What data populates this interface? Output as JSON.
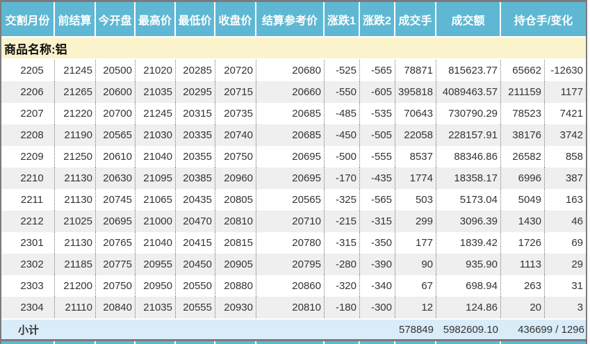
{
  "colors": {
    "header_bg": "#5eb8d3",
    "header_text": "#ffffff",
    "product_row_bg": "#fbf3cb",
    "alt_row_bg": "#efefef",
    "subtotal_bg": "#d9ecf8",
    "border": "#7b7b7b",
    "dotted": "#777777",
    "text": "#333333"
  },
  "table": {
    "columns": [
      "交割月份",
      "前结算",
      "今开盘",
      "最高价",
      "最低价",
      "收盘价",
      "结算参考价",
      "涨跌1",
      "涨跌2",
      "成交手",
      "成交额",
      "持仓手/变化"
    ],
    "product_label": "商品名称:铝",
    "rows": [
      [
        "2205",
        "21245",
        "20500",
        "21020",
        "20285",
        "20720",
        "20680",
        "-525",
        "-565",
        "78871",
        "815623.77",
        "65662",
        "-12630"
      ],
      [
        "2206",
        "21265",
        "20600",
        "21035",
        "20295",
        "20715",
        "20660",
        "-550",
        "-605",
        "395818",
        "4089463.57",
        "211159",
        "1177"
      ],
      [
        "2207",
        "21220",
        "20700",
        "21245",
        "20315",
        "20735",
        "20685",
        "-485",
        "-535",
        "70643",
        "730790.29",
        "78523",
        "7421"
      ],
      [
        "2208",
        "21190",
        "20565",
        "21030",
        "20335",
        "20740",
        "20685",
        "-450",
        "-505",
        "22058",
        "228157.91",
        "38176",
        "3742"
      ],
      [
        "2209",
        "21250",
        "20610",
        "21040",
        "20355",
        "20750",
        "20695",
        "-500",
        "-555",
        "8537",
        "88346.86",
        "26582",
        "858"
      ],
      [
        "2210",
        "21130",
        "20630",
        "21095",
        "20385",
        "20960",
        "20695",
        "-170",
        "-435",
        "1774",
        "18358.17",
        "6996",
        "387"
      ],
      [
        "2211",
        "21130",
        "20745",
        "21065",
        "20435",
        "20805",
        "20565",
        "-325",
        "-565",
        "503",
        "5173.04",
        "5049",
        "163"
      ],
      [
        "2212",
        "21025",
        "20695",
        "21000",
        "20470",
        "20810",
        "20710",
        "-215",
        "-315",
        "299",
        "3096.39",
        "1430",
        "46"
      ],
      [
        "2301",
        "21130",
        "20765",
        "21040",
        "20415",
        "20815",
        "20780",
        "-315",
        "-350",
        "177",
        "1839.42",
        "1726",
        "69"
      ],
      [
        "2302",
        "21185",
        "20775",
        "20955",
        "20450",
        "20905",
        "20795",
        "-280",
        "-390",
        "90",
        "935.90",
        "1113",
        "29"
      ],
      [
        "2303",
        "21200",
        "20750",
        "20950",
        "20550",
        "20880",
        "20860",
        "-320",
        "-340",
        "67",
        "698.94",
        "263",
        "31"
      ],
      [
        "2304",
        "21110",
        "20840",
        "21035",
        "20555",
        "20930",
        "20810",
        "-180",
        "-300",
        "12",
        "124.86",
        "20",
        "3"
      ]
    ],
    "subtotal": {
      "label": "小计",
      "volume": "578849",
      "turnover": "5982609.10",
      "open_interest_change": "436699 / 1296"
    }
  }
}
